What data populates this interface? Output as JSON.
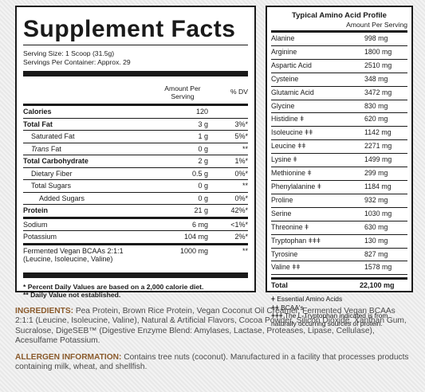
{
  "supplement_facts": {
    "title": "Supplement Facts",
    "serving_size": "Serving Size: 1 Scoop (31.5g)",
    "servings_per_container": "Servings Per Container: Approx. 29",
    "header": {
      "amount": "Amount Per\nServing",
      "dv": "% DV"
    },
    "rows": [
      {
        "name": "Calories",
        "amount": "120",
        "dv": ""
      },
      {
        "name": "Total Fat",
        "amount": "3 g",
        "dv": "3%*"
      },
      {
        "name": "Saturated Fat",
        "amount": "1 g",
        "dv": "5%*"
      },
      {
        "name_italic": "Trans",
        "name_rest": " Fat",
        "amount": "0 g",
        "dv": "**"
      },
      {
        "name": "Total Carbohydrate",
        "amount": "2 g",
        "dv": "1%*"
      },
      {
        "name": "Dietary Fiber",
        "amount": "0.5 g",
        "dv": "0%*"
      },
      {
        "name": "Total Sugars",
        "amount": "0 g",
        "dv": "**"
      },
      {
        "name": "Added Sugars",
        "amount": "0 g",
        "dv": "0%*"
      },
      {
        "name": "Protein",
        "amount": "21 g",
        "dv": "42%*"
      },
      {
        "name": "Sodium",
        "amount": "6 mg",
        "dv": "<1%*"
      },
      {
        "name": "Potassium",
        "amount": "104 mg",
        "dv": "2%*"
      },
      {
        "name_line1": "Fermented Vegan BCAAs 2:1:1",
        "name_line2": "(Leucine, Isoleucine, Valine)",
        "amount": "1000 mg",
        "dv": "**"
      }
    ],
    "footnote_1": "* Percent Daily Values are based on a 2,000 calorie diet.",
    "footnote_2": "** Daily Value not established."
  },
  "amino_profile": {
    "title": "Typical Amino Acid Profile",
    "subtitle": "Amount Per Serving",
    "rows": [
      {
        "name": "Alanine",
        "value": "998 mg"
      },
      {
        "name": "Arginine",
        "value": "1800 mg"
      },
      {
        "name": "Aspartic Acid",
        "value": "2510 mg"
      },
      {
        "name": "Cysteine",
        "value": "348 mg"
      },
      {
        "name": "Glutamic Acid",
        "value": "3472 mg"
      },
      {
        "name": "Glycine",
        "value": "830 mg"
      },
      {
        "name": "Histidine ǂ",
        "value": "620 mg"
      },
      {
        "name": "Isoleucine ǂǂ",
        "value": "1142 mg"
      },
      {
        "name": "Leucine ǂǂ",
        "value": "2271 mg"
      },
      {
        "name": "Lysine ǂ",
        "value": "1499 mg"
      },
      {
        "name": "Methionine ǂ",
        "value": "299 mg"
      },
      {
        "name": "Phenylalanine ǂ",
        "value": "1184 mg"
      },
      {
        "name": "Proline",
        "value": "932 mg"
      },
      {
        "name": "Serine",
        "value": "1030 mg"
      },
      {
        "name": "Threonine ǂ",
        "value": "630 mg"
      },
      {
        "name": "Tryptophan ǂǂǂ",
        "value": "130 mg"
      },
      {
        "name": "Tyrosine",
        "value": "827 mg"
      },
      {
        "name": "Valine ǂǂ",
        "value": "1578 mg"
      }
    ],
    "total_label": "Total",
    "total_value": "22,100 mg",
    "note_1": "ǂ Essential Amino Acids",
    "note_2": "ǂǂ BCAA's",
    "note_3a": "ǂǂǂ The L-Tryptophan indicated is from",
    "note_3b": "naturally occurring sources of protein."
  },
  "ingredients": {
    "label": "INGREDIENTS:",
    "text": " Pea Protein, Brown Rice Protein, Vegan Coconut Oil Creamer, Fermented Vegan BCAAs 2:1:1 (Leucine, Isoleucine, Valine), Natural & Artificial Flavors, Cocoa Powder, Silicon Dioxide, Xanthan Gum, Sucralose, DigeSEB™ (Digestive Enzyme Blend: Amylases, Lactase, Proteases, Lipase, Cellulase), Acesulfame Potassium."
  },
  "allergen": {
    "label": "ALLERGEN INFORMATION:",
    "text": " Contains tree nuts (coconut). Manufactured in a facility that processes products containing milk, wheat, and shellfish."
  }
}
